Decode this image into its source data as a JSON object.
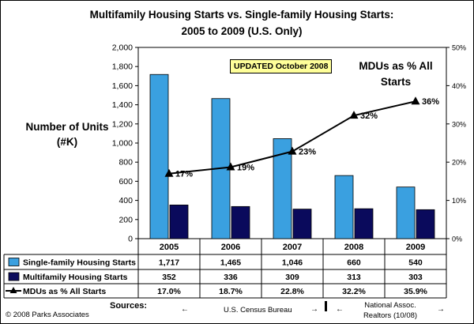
{
  "title_line1": "Multifamily Housing Starts vs. Single-family Housing Starts:",
  "title_line2": "2005 to 2009  (U.S. Only)",
  "badge": "UPDATED October 2008",
  "ylabel_line1": "Number of Units",
  "ylabel_line2": "(#K)",
  "right_label_line1": "MDUs as % All",
  "right_label_line2": "Starts",
  "colors": {
    "single_family": "#3aa0e0",
    "multifamily": "#0a0a5c",
    "line": "#000000"
  },
  "chart_data": {
    "type": "bar",
    "categories": [
      "2005",
      "2006",
      "2007",
      "2008",
      "2009"
    ],
    "ylim": [
      0,
      2000
    ],
    "y2lim": [
      0,
      50
    ],
    "y_ticks": [
      "0",
      "200",
      "400",
      "600",
      "800",
      "1,000",
      "1,200",
      "1,400",
      "1,600",
      "1,800",
      "2,000"
    ],
    "y2_ticks": [
      "0%",
      "10%",
      "20%",
      "30%",
      "40%",
      "50%"
    ],
    "series": [
      {
        "name": "Single-family Housing Starts",
        "values": [
          1717,
          1465,
          1046,
          660,
          540
        ],
        "labels": [
          "1,717",
          "1,465",
          "1,046",
          "660",
          "540"
        ]
      },
      {
        "name": "Multifamily Housing Starts",
        "values": [
          352,
          336,
          309,
          313,
          303
        ],
        "labels": [
          "352",
          "336",
          "309",
          "313",
          "303"
        ]
      },
      {
        "name": "MDUs as % All Starts",
        "axis": "right",
        "values": [
          17.0,
          18.7,
          22.8,
          32.2,
          35.9
        ],
        "labels": [
          "17.0%",
          "18.7%",
          "22.8%",
          "32.2%",
          "35.9%"
        ],
        "point_labels": [
          "17%",
          "19%",
          "23%",
          "32%",
          "36%"
        ]
      }
    ]
  },
  "footer": {
    "copyright": "© 2008 Parks Associates",
    "sources_label": "Sources:",
    "census": "U.S. Census Bureau",
    "national_line1": "National Assoc.",
    "national_line2": "Realtors (10/08)",
    "arrow_left": "←",
    "arrow_right": "→"
  }
}
